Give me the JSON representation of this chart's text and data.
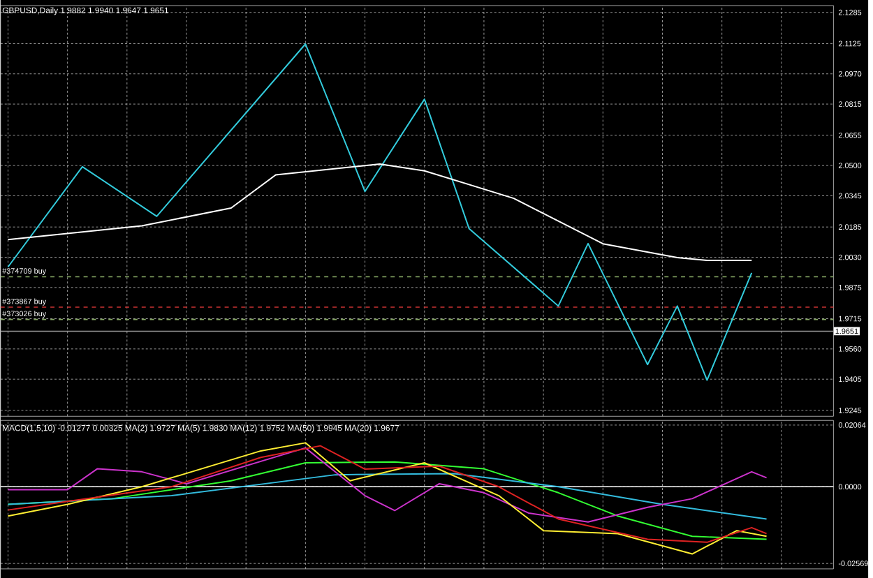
{
  "chart_data": [
    {
      "type": "line",
      "title": "GBPUSD,Daily  1.9882 1.9940 1.9647 1.9651",
      "grid": true,
      "tick_labels": "y",
      "marker": "none",
      "categories": [
        null,
        null,
        null,
        null,
        null,
        null,
        null,
        null,
        null,
        null,
        null,
        null,
        null,
        null,
        null,
        null,
        null,
        null,
        null,
        null,
        null,
        null,
        null,
        null,
        null,
        null,
        null,
        null,
        null,
        null,
        null,
        null,
        null,
        null,
        null,
        null,
        null,
        null,
        null,
        null,
        null,
        null,
        null,
        null,
        null,
        null,
        null,
        null,
        null,
        null,
        null,
        null,
        null,
        null,
        null,
        null
      ],
      "ylim": [
        1.9215,
        2.132
      ],
      "yticks": [
        {
          "value": 2.1285,
          "label": "2.1285"
        },
        {
          "value": 2.1125,
          "label": "2.1125"
        },
        {
          "value": 2.097,
          "label": "2.0970"
        },
        {
          "value": 2.0815,
          "label": "2.0815"
        },
        {
          "value": 2.0655,
          "label": "2.0655"
        },
        {
          "value": 2.05,
          "label": "2.0500"
        },
        {
          "value": 2.0345,
          "label": "2.0345"
        },
        {
          "value": 2.0185,
          "label": "2.0185"
        },
        {
          "value": 2.003,
          "label": "2.0030"
        },
        {
          "value": 1.9875,
          "label": "1.9875"
        },
        {
          "value": 1.9715,
          "label": "1.9715"
        },
        {
          "value": 1.956,
          "label": "1.9560"
        },
        {
          "value": 1.9405,
          "label": "1.9405"
        },
        {
          "value": 1.9245,
          "label": "1.9245"
        }
      ],
      "series": [
        {
          "color": "#33ccdd",
          "values": [
            1.998,
            null,
            null,
            null,
            null,
            2.0494,
            null,
            null,
            null,
            null,
            2.024,
            null,
            null,
            null,
            null,
            null,
            null,
            null,
            null,
            null,
            2.1123,
            null,
            null,
            null,
            2.0367,
            null,
            null,
            null,
            2.084,
            null,
            null,
            2.0177,
            null,
            null,
            null,
            null,
            null,
            1.978,
            null,
            2.01,
            null,
            null,
            null,
            1.948,
            null,
            1.978,
            null,
            1.94,
            null,
            null,
            1.995,
            null,
            null,
            null,
            null,
            null
          ]
        },
        {
          "color": "#ffffff",
          "values": [
            2.012,
            null,
            null,
            null,
            null,
            null,
            null,
            null,
            null,
            2.0191,
            null,
            null,
            null,
            null,
            null,
            2.0282,
            null,
            null,
            2.0452,
            null,
            null,
            null,
            null,
            null,
            null,
            2.0508,
            null,
            null,
            2.0473,
            null,
            null,
            null,
            null,
            null,
            2.0332,
            null,
            null,
            null,
            null,
            null,
            2.0099,
            null,
            null,
            null,
            null,
            2.0028,
            null,
            2.0014,
            null,
            null,
            2.0014,
            null,
            null,
            null,
            null,
            null
          ]
        }
      ],
      "ref_lines": [
        {
          "axis": "y",
          "value": 1.993,
          "label": "#374709 buy",
          "color": "#88aa66",
          "line_style": "dashed"
        },
        {
          "axis": "y",
          "value": 1.9774,
          "label": "#373867 buy",
          "color": "#cc3333",
          "line_style": "dashed"
        },
        {
          "axis": "y",
          "value": 1.9711,
          "label": "#373026 buy",
          "color": "#88aa66",
          "line_style": "dashed"
        },
        {
          "axis": "y",
          "value": 1.9651,
          "label": "1.9651",
          "color": "#999999",
          "line_style": "solid"
        }
      ]
    },
    {
      "type": "line",
      "grid": true,
      "tick_labels": "y",
      "marker": "none",
      "annotations": [
        "MACD(1,5,10) -0.01277 0.00325 MA(2) 1.9727 MA(5) 1.9830 MA(12) 1.9752 MA(50) 1.9945 MA(20) 1.9677"
      ],
      "categories": [
        null,
        null,
        null,
        null,
        null,
        null,
        null,
        null,
        null,
        null,
        null,
        null,
        null,
        null,
        null,
        null,
        null,
        null,
        null,
        null,
        null,
        null,
        null,
        null,
        null,
        null,
        null,
        null,
        null,
        null,
        null,
        null,
        null,
        null,
        null,
        null,
        null,
        null,
        null,
        null,
        null,
        null,
        null,
        null,
        null,
        null,
        null,
        null,
        null,
        null,
        null,
        null,
        null,
        null,
        null,
        null
      ],
      "ylim": [
        -0.0275,
        0.0222
      ],
      "yticks": [
        {
          "value": 0.02064,
          "label": "0.02064"
        },
        {
          "value": 0,
          "label": "0.0000"
        },
        {
          "value": -0.02569,
          "label": "-0.02569"
        }
      ],
      "series": [
        {
          "color": "#33ff33",
          "values": [
            -0.0059,
            null,
            null,
            null,
            null,
            null,
            null,
            -0.004,
            null,
            null,
            null,
            null,
            null,
            null,
            null,
            0.002,
            null,
            null,
            null,
            null,
            0.008,
            null,
            null,
            null,
            null,
            null,
            0.0083,
            null,
            null,
            null,
            null,
            null,
            0.006,
            null,
            null,
            null,
            null,
            -0.002,
            null,
            null,
            null,
            -0.0098,
            null,
            null,
            null,
            null,
            -0.0166,
            null,
            null,
            null,
            null,
            -0.0176,
            null,
            null,
            null,
            null
          ]
        },
        {
          "color": "#33bbdd",
          "values": [
            -0.0059,
            null,
            null,
            null,
            null,
            null,
            null,
            null,
            null,
            null,
            null,
            -0.003,
            null,
            null,
            null,
            null,
            null,
            null,
            null,
            null,
            null,
            null,
            0.004,
            null,
            null,
            null,
            null,
            null,
            null,
            null,
            0.0044,
            null,
            null,
            null,
            null,
            null,
            null,
            0,
            null,
            null,
            null,
            null,
            null,
            null,
            -0.0059,
            null,
            null,
            null,
            null,
            null,
            null,
            -0.0108,
            null,
            null,
            null,
            null
          ]
        },
        {
          "color": "#cc33cc",
          "values": [
            -0.001,
            null,
            null,
            null,
            -0.001,
            null,
            0.006,
            null,
            null,
            0.005,
            null,
            null,
            0.001,
            null,
            null,
            null,
            null,
            null,
            null,
            null,
            0.013,
            null,
            null,
            null,
            -0.003,
            null,
            -0.008,
            null,
            null,
            0.001,
            null,
            null,
            -0.002,
            null,
            null,
            -0.0088,
            null,
            null,
            null,
            -0.0118,
            null,
            null,
            null,
            -0.0069,
            null,
            null,
            -0.004,
            null,
            null,
            null,
            0.005,
            0.003,
            null,
            null,
            null,
            null
          ]
        },
        {
          "color": "#ffee33",
          "values": [
            -0.0098,
            null,
            null,
            null,
            -0.0059,
            null,
            null,
            null,
            null,
            0,
            null,
            null,
            null,
            null,
            null,
            null,
            null,
            0.012,
            null,
            null,
            0.0147,
            null,
            null,
            0.002,
            null,
            null,
            null,
            null,
            0.008,
            null,
            null,
            null,
            null,
            -0.003,
            null,
            null,
            -0.0147,
            null,
            null,
            null,
            null,
            -0.0157,
            null,
            null,
            null,
            null,
            -0.0225,
            null,
            null,
            -0.0147,
            null,
            -0.0166,
            null,
            null,
            null,
            null
          ]
        },
        {
          "color": "#dd2222",
          "values": [
            -0.0078,
            null,
            null,
            null,
            -0.0049,
            null,
            null,
            null,
            null,
            null,
            null,
            0,
            null,
            null,
            null,
            null,
            null,
            0.0098,
            null,
            null,
            null,
            0.0137,
            null,
            null,
            0.0059,
            null,
            null,
            null,
            null,
            0.0069,
            null,
            null,
            null,
            0,
            null,
            null,
            null,
            -0.0108,
            null,
            null,
            null,
            null,
            null,
            -0.0176,
            null,
            null,
            null,
            -0.0186,
            null,
            null,
            -0.0137,
            -0.0157,
            null,
            null,
            null,
            null
          ]
        }
      ],
      "ref_lines": [
        {
          "axis": "y",
          "value": 0,
          "color": "#ffffff",
          "line_style": "solid"
        }
      ]
    }
  ]
}
